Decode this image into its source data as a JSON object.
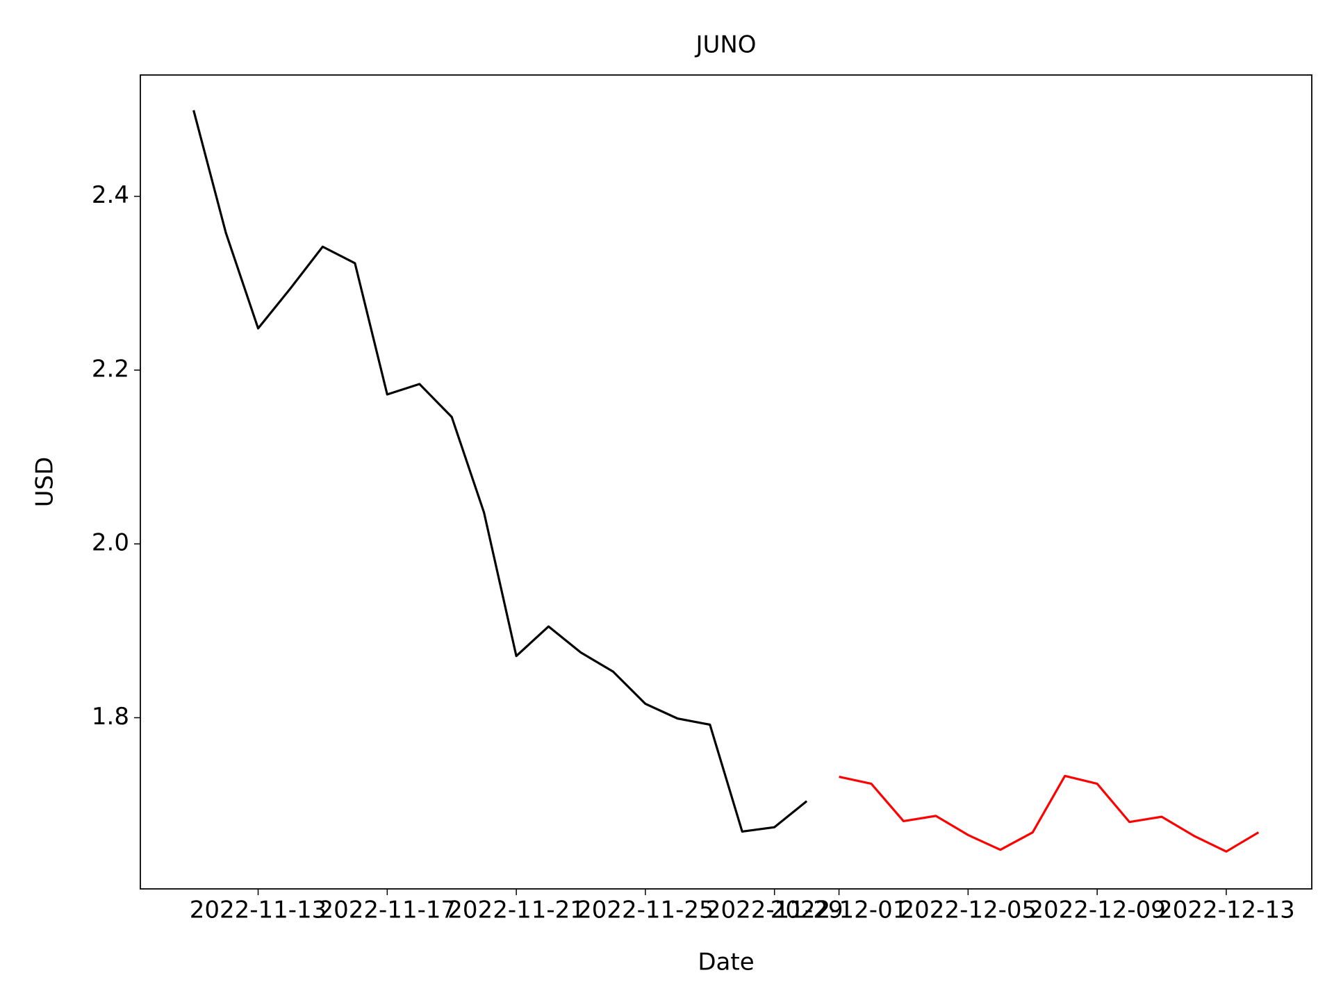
{
  "chart_data": {
    "type": "line",
    "title": "JUNO",
    "xlabel": "Date",
    "ylabel": "USD",
    "x": [
      "2022-11-11",
      "2022-11-12",
      "2022-11-13",
      "2022-11-14",
      "2022-11-15",
      "2022-11-16",
      "2022-11-17",
      "2022-11-18",
      "2022-11-19",
      "2022-11-20",
      "2022-11-21",
      "2022-11-22",
      "2022-11-23",
      "2022-11-24",
      "2022-11-25",
      "2022-11-26",
      "2022-11-27",
      "2022-11-28",
      "2022-11-29",
      "2022-11-30",
      "2022-12-01",
      "2022-12-02",
      "2022-12-03",
      "2022-12-04",
      "2022-12-05",
      "2022-12-06",
      "2022-12-07",
      "2022-12-08",
      "2022-12-09",
      "2022-12-10",
      "2022-12-11",
      "2022-12-12",
      "2022-12-13",
      "2022-12-14"
    ],
    "series": [
      {
        "color": "#000000",
        "values": [
          2.499,
          2.358,
          2.248,
          2.294,
          2.342,
          2.323,
          2.172,
          2.184,
          2.146,
          2.036,
          1.871,
          1.905,
          1.875,
          1.853,
          1.816,
          1.799,
          1.792,
          1.669,
          1.674,
          1.704,
          null,
          null,
          null,
          null,
          null,
          null,
          null,
          null,
          null,
          null,
          null,
          null,
          null,
          null
        ]
      },
      {
        "color": "#ff0000",
        "values": [
          null,
          null,
          null,
          null,
          null,
          null,
          null,
          null,
          null,
          null,
          null,
          null,
          null,
          null,
          null,
          null,
          null,
          null,
          null,
          null,
          1.732,
          1.724,
          1.681,
          1.687,
          1.665,
          1.648,
          1.668,
          1.733,
          1.724,
          1.68,
          1.686,
          1.664,
          1.646,
          1.668
        ]
      }
    ],
    "xlim": [
      "2022-11-09T08:24:00Z",
      "2022-12-15T15:36:00Z"
    ],
    "xticks": [
      "2022-11-13",
      "2022-11-17",
      "2022-11-21",
      "2022-11-25",
      "2022-11-29",
      "2022-12-01",
      "2022-12-05",
      "2022-12-09",
      "2022-12-13"
    ],
    "ylim": [
      1.603,
      2.5396
    ],
    "yticks": [
      {
        "value": 1.8,
        "label": "1.8"
      },
      {
        "value": 2.0,
        "label": "2.0"
      },
      {
        "value": 2.2,
        "label": "2.2"
      },
      {
        "value": 2.4,
        "label": "2.4"
      }
    ],
    "grid": false
  }
}
